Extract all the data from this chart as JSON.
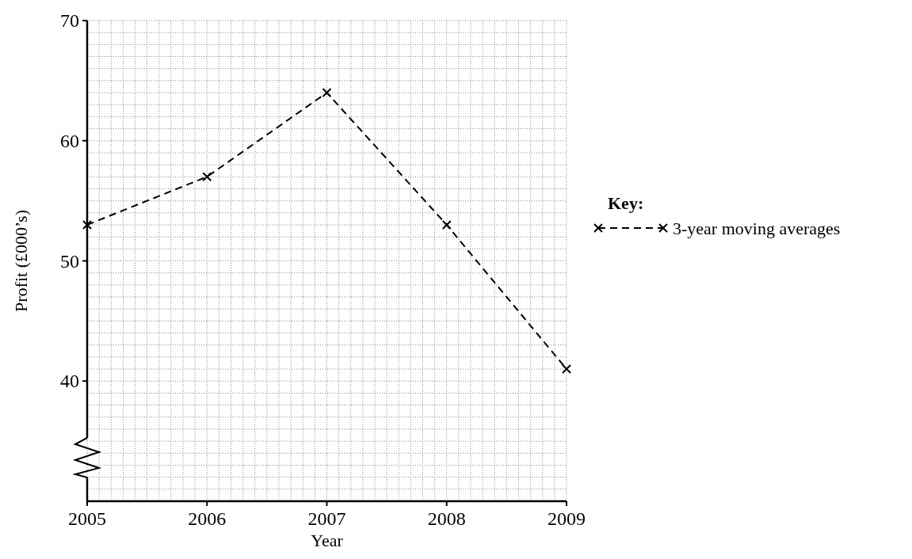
{
  "chart_data": {
    "type": "line",
    "xlabel": "Year",
    "ylabel": "Profit (£000’s)",
    "legend_title": "Key:",
    "x": [
      2005,
      2006,
      2007,
      2008,
      2009
    ],
    "series": [
      {
        "name": "3-year moving averages",
        "color": "#000000",
        "values": [
          53,
          57,
          64,
          53,
          41
        ]
      }
    ],
    "xlim": [
      2005,
      2009
    ],
    "xticks": [
      2005,
      2006,
      2007,
      2008,
      2009
    ],
    "ylim": [
      30,
      70
    ],
    "yticks": [
      40,
      50,
      60,
      70
    ],
    "grid": true,
    "legend": "right",
    "marker": "cross",
    "line_style": "dashed"
  }
}
